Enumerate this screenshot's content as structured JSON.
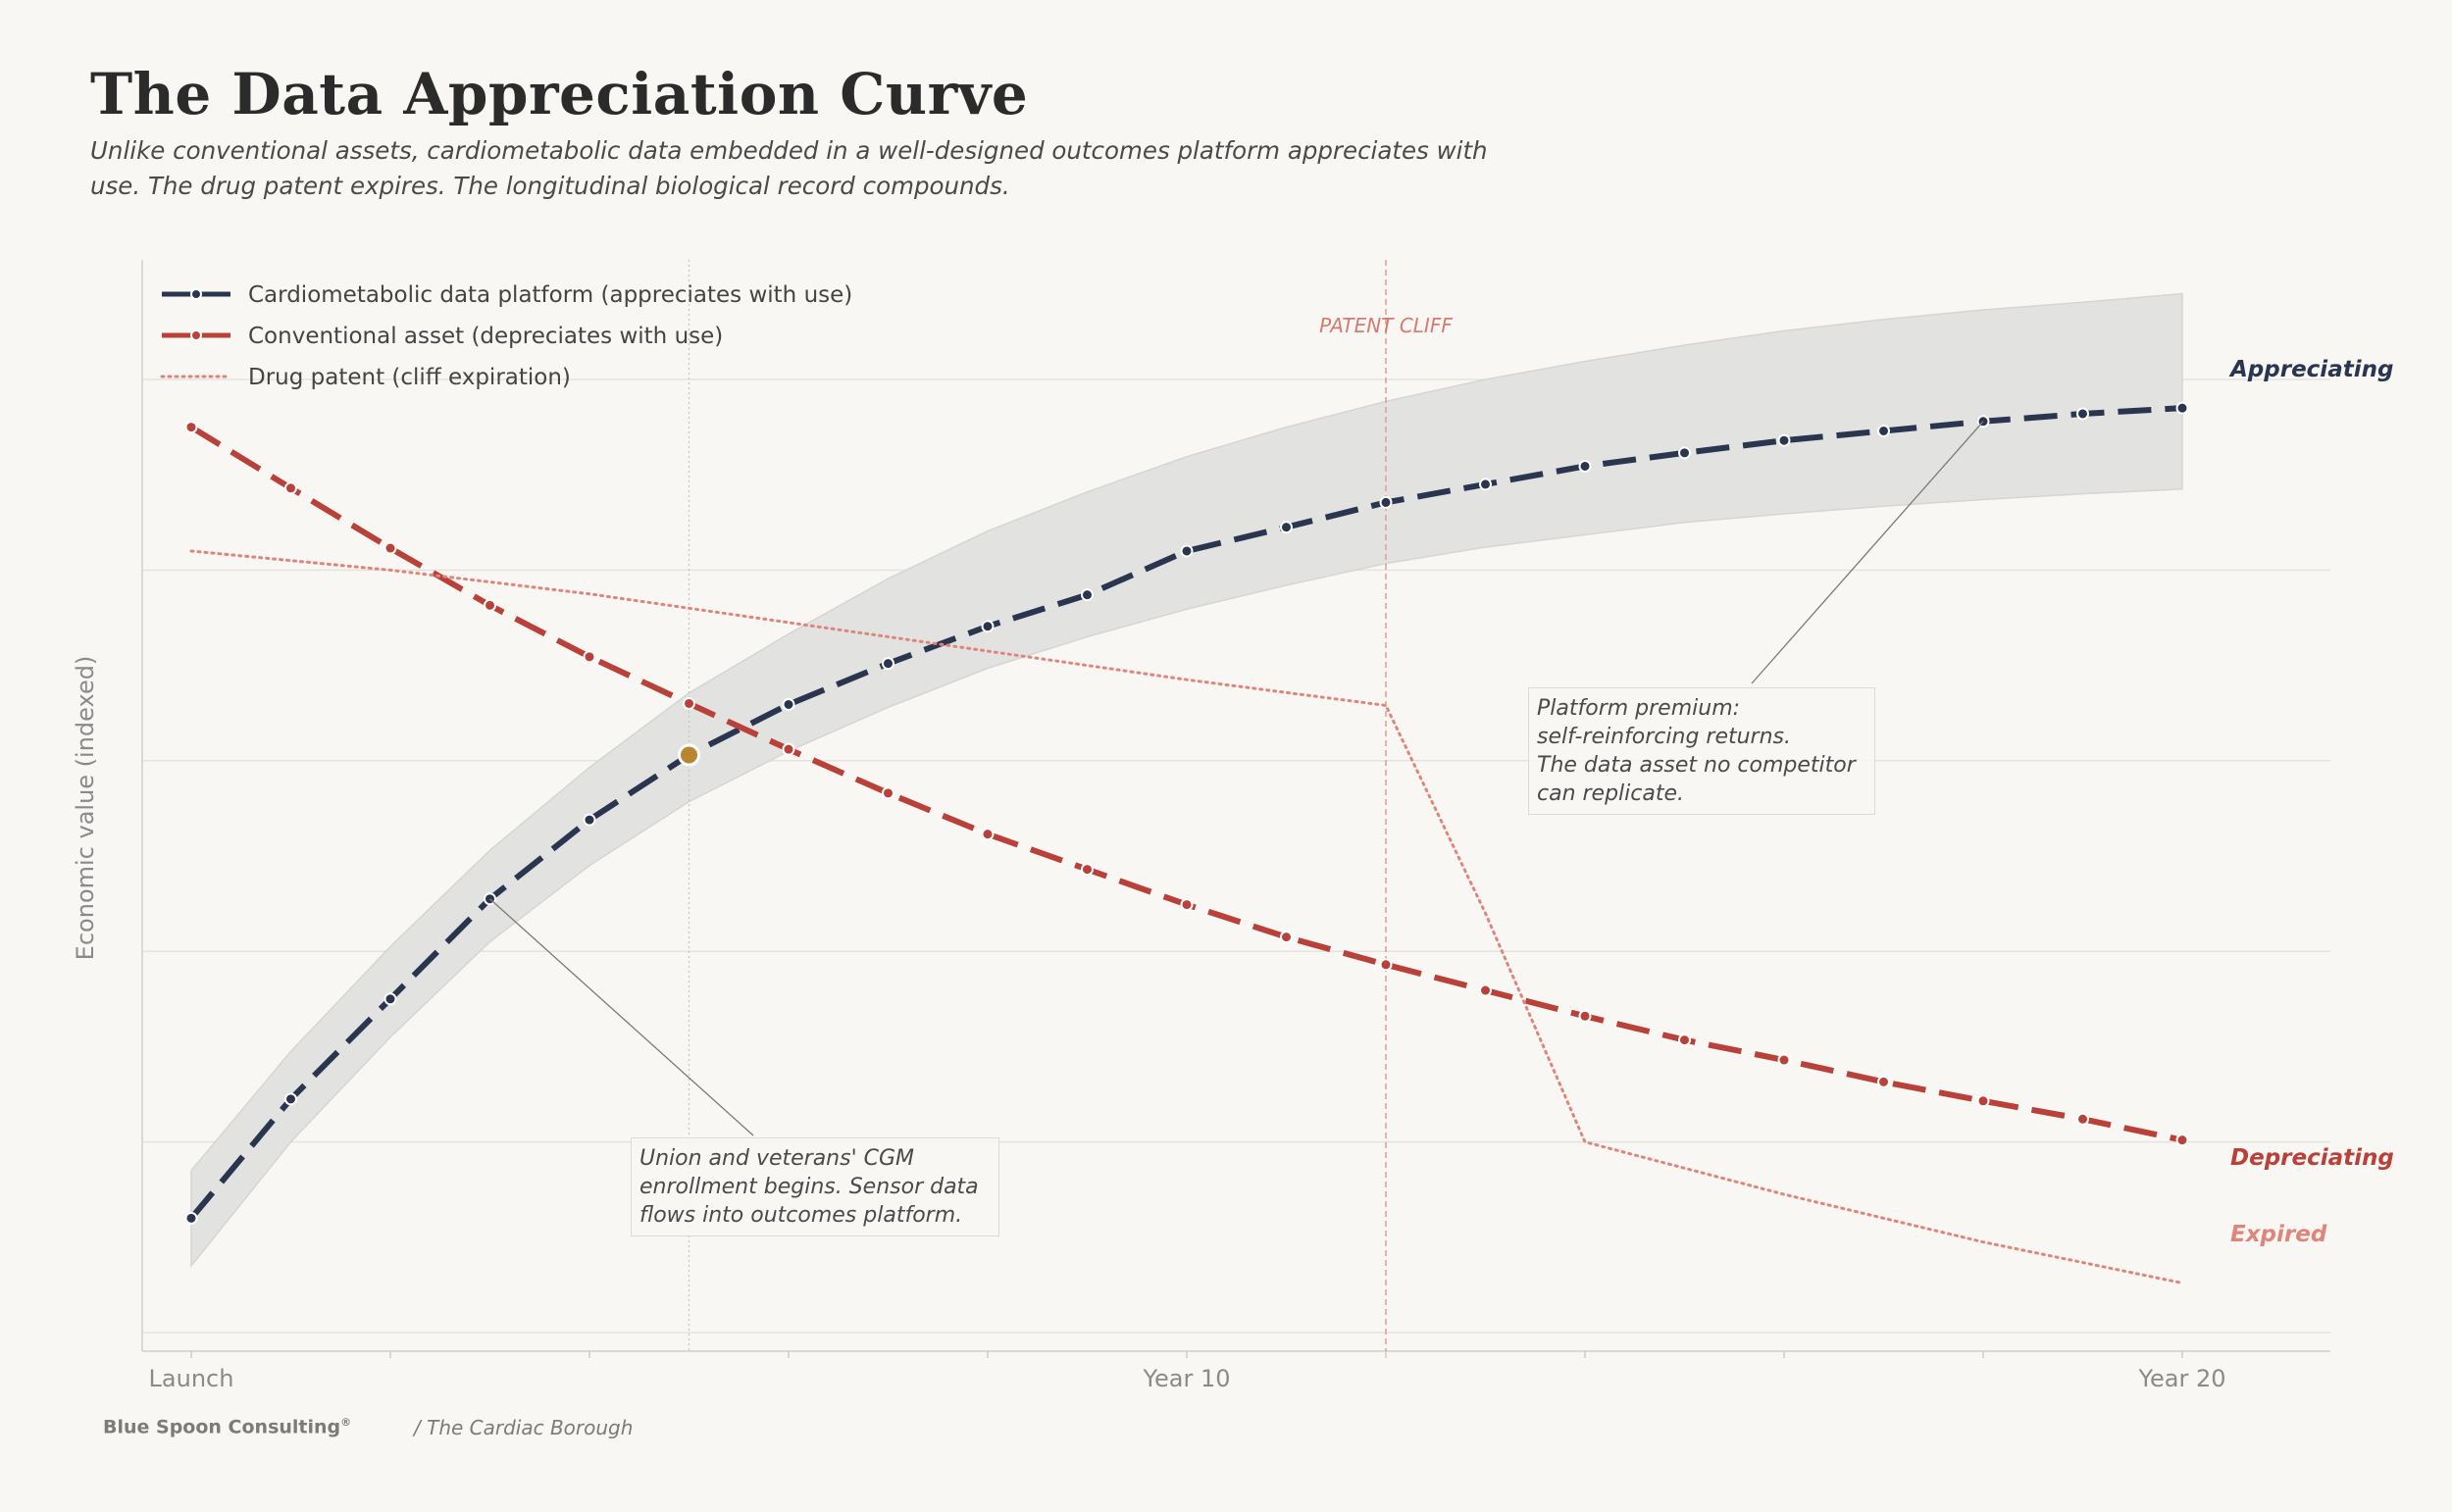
{
  "title": "The Data Appreciation Curve",
  "subtitle": "Unlike conventional assets, cardiometabolic data embedded in a well-designed outcomes platform appreciates with use. The drug patent expires. The longitudinal biological record compounds.",
  "footer": {
    "brand": "Blue Spoon Consulting",
    "brand_mark": "®",
    "source": "/ The Cardiac Borough"
  },
  "annotations": {
    "platform_premium": "Platform premium:\nself-reinforcing returns.\nThe data asset no competitor\ncan replicate.",
    "union_enrollment": "Union and veterans' CGM\nenrollment begins. Sensor data\nflows into outcomes platform.",
    "patent_cliff": "PATENT CLIFF"
  },
  "end_labels": {
    "appreciating": "Appreciating",
    "depreciating": "Depreciating",
    "expired": "Expired"
  },
  "colors": {
    "platform": "#2a3650",
    "conventional": "#b9413a",
    "patent": "#e0857a",
    "band": "#e1e1e1",
    "highlight": "#b8862e",
    "grid": "#e6e3de",
    "axis_text": "#8a8a8a"
  },
  "chart_data": {
    "type": "line",
    "title": "The Data Appreciation Curve",
    "xlabel": "",
    "ylabel": "Economic value (indexed)",
    "x": [
      0,
      1,
      2,
      3,
      4,
      5,
      6,
      7,
      8,
      9,
      10,
      11,
      12,
      13,
      14,
      15,
      16,
      17,
      18,
      19,
      20
    ],
    "xticks": [
      0,
      2,
      4,
      6,
      8,
      10,
      12,
      14,
      16,
      18,
      20
    ],
    "xtick_labels": {
      "0": "Launch",
      "10": "Year 10",
      "20": "Year 20"
    },
    "xlim": [
      -0.5,
      21.5
    ],
    "ylim": [
      0,
      117
    ],
    "yticks": [
      2,
      22,
      42,
      62,
      82,
      102
    ],
    "grid": true,
    "legend_position": "top-left",
    "series": [
      {
        "name": "Cardiometabolic data platform (appreciates with use)",
        "style": "dashed",
        "values": [
          14,
          26.5,
          37,
          47.5,
          55.8,
          62.6,
          67.9,
          72.2,
          76.1,
          79.4,
          84,
          86.5,
          89.1,
          91,
          92.9,
          94.3,
          95.6,
          96.6,
          97.6,
          98.4,
          99
        ]
      },
      {
        "name": "Conventional asset (depreciates with use)",
        "style": "dashed",
        "values": [
          97,
          90.6,
          84.3,
          78.3,
          72.9,
          68,
          63.2,
          58.6,
          54.3,
          50.6,
          46.9,
          43.5,
          40.6,
          37.9,
          35.2,
          32.7,
          30.6,
          28.3,
          26.3,
          24.4,
          22.2
        ]
      },
      {
        "name": "Drug patent (cliff expiration)",
        "style": "dotted",
        "x": [
          0,
          2,
          4,
          6,
          8,
          10,
          12,
          13,
          14,
          16,
          18,
          20
        ],
        "values": [
          84,
          82,
          79.5,
          76.5,
          73.5,
          70.5,
          67.8,
          46,
          22,
          16.5,
          11.5,
          7.2
        ]
      }
    ],
    "confidence_band": {
      "series": "Cardiometabolic data platform (appreciates with use)",
      "lower": [
        9,
        22,
        33,
        43,
        51,
        57.7,
        63,
        67.6,
        71.7,
        75,
        77.9,
        80.4,
        82.7,
        84.4,
        85.7,
        87,
        87.9,
        88.7,
        89.4,
        90,
        90.5
      ],
      "upper": [
        19,
        31.5,
        42.5,
        52.6,
        61.3,
        69.1,
        75.3,
        81.1,
        86.1,
        90.2,
        93.9,
        97,
        99.7,
        102,
        103.9,
        105.6,
        107.1,
        108.3,
        109.3,
        110.1,
        111
      ]
    },
    "vertical_markers": [
      {
        "x": 12,
        "label": "PATENT CLIFF",
        "style": "dashed"
      },
      {
        "x": 5,
        "label": "",
        "style": "dotted"
      }
    ],
    "highlight_point": {
      "x": 5,
      "y": 62.6
    }
  }
}
